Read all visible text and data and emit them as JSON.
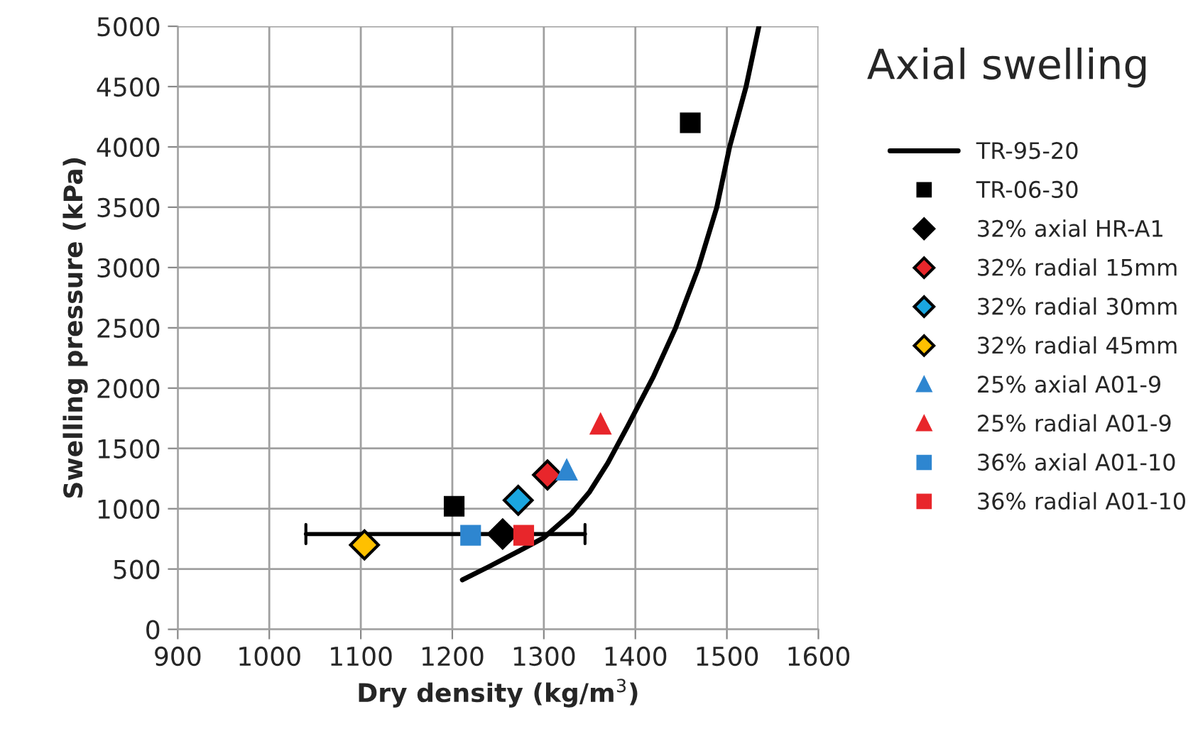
{
  "chart_data": {
    "type": "scatter",
    "title": "Axial swelling",
    "xlabel": "Dry density (kg/m$^{3}$)",
    "ylabel": "Swelling pressure (kPa)",
    "xlim": [
      900,
      1600
    ],
    "xticks": [
      900,
      1000,
      1100,
      1200,
      1300,
      1400,
      1500,
      1600
    ],
    "ylim": [
      0,
      5000
    ],
    "yticks": [
      0,
      500,
      1000,
      1500,
      2000,
      2500,
      3000,
      3500,
      4000,
      4500,
      5000
    ],
    "grid": true,
    "legend": "right",
    "series": [
      {
        "name": "TR-95-20",
        "type": "line",
        "color": "#000000",
        "marker": "none",
        "line_style": "solid",
        "x": [
          1211,
          1240,
          1273,
          1300,
          1330,
          1350,
          1370,
          1392,
          1420,
          1444,
          1469,
          1489,
          1503,
          1521,
          1535
        ],
        "values": [
          410,
          520,
          650,
          760,
          960,
          1140,
          1380,
          1690,
          2100,
          2500,
          3000,
          3500,
          4000,
          4500,
          5000
        ]
      },
      {
        "name": "TR-06-30",
        "color": "#000000",
        "marker": "square",
        "x": [
          1202,
          1460
        ],
        "values": [
          1020,
          4200
        ]
      },
      {
        "name": "32% axial HR-A1",
        "color": "#000000",
        "marker": "diamond",
        "x": [
          1255
        ],
        "values": [
          790
        ],
        "xerrors": [
          [
            1040,
            1345
          ]
        ]
      },
      {
        "name": "32% radial 15mm",
        "color": "#e8262b",
        "marker": "diamond",
        "x": [
          1304
        ],
        "values": [
          1280
        ]
      },
      {
        "name": "32% radial 30mm",
        "color": "#1aa6e0",
        "marker": "diamond",
        "x": [
          1272
        ],
        "values": [
          1070
        ]
      },
      {
        "name": "32% radial 45mm",
        "color": "#ffc000",
        "marker": "diamond",
        "x": [
          1104
        ],
        "values": [
          700
        ]
      },
      {
        "name": "25% axial A01-9",
        "color": "#2e86d0",
        "marker": "triangle",
        "x": [
          1325
        ],
        "values": [
          1320
        ]
      },
      {
        "name": "25% radial A01-9",
        "color": "#e8262b",
        "marker": "triangle",
        "x": [
          1362
        ],
        "values": [
          1700
        ]
      },
      {
        "name": "36% axial A01-10",
        "color": "#2e86d0",
        "marker": "square",
        "x": [
          1220
        ],
        "values": [
          780
        ]
      },
      {
        "name": "36% radial A01-10",
        "color": "#e8262b",
        "marker": "square",
        "x": [
          1278
        ],
        "values": [
          780
        ]
      }
    ]
  }
}
